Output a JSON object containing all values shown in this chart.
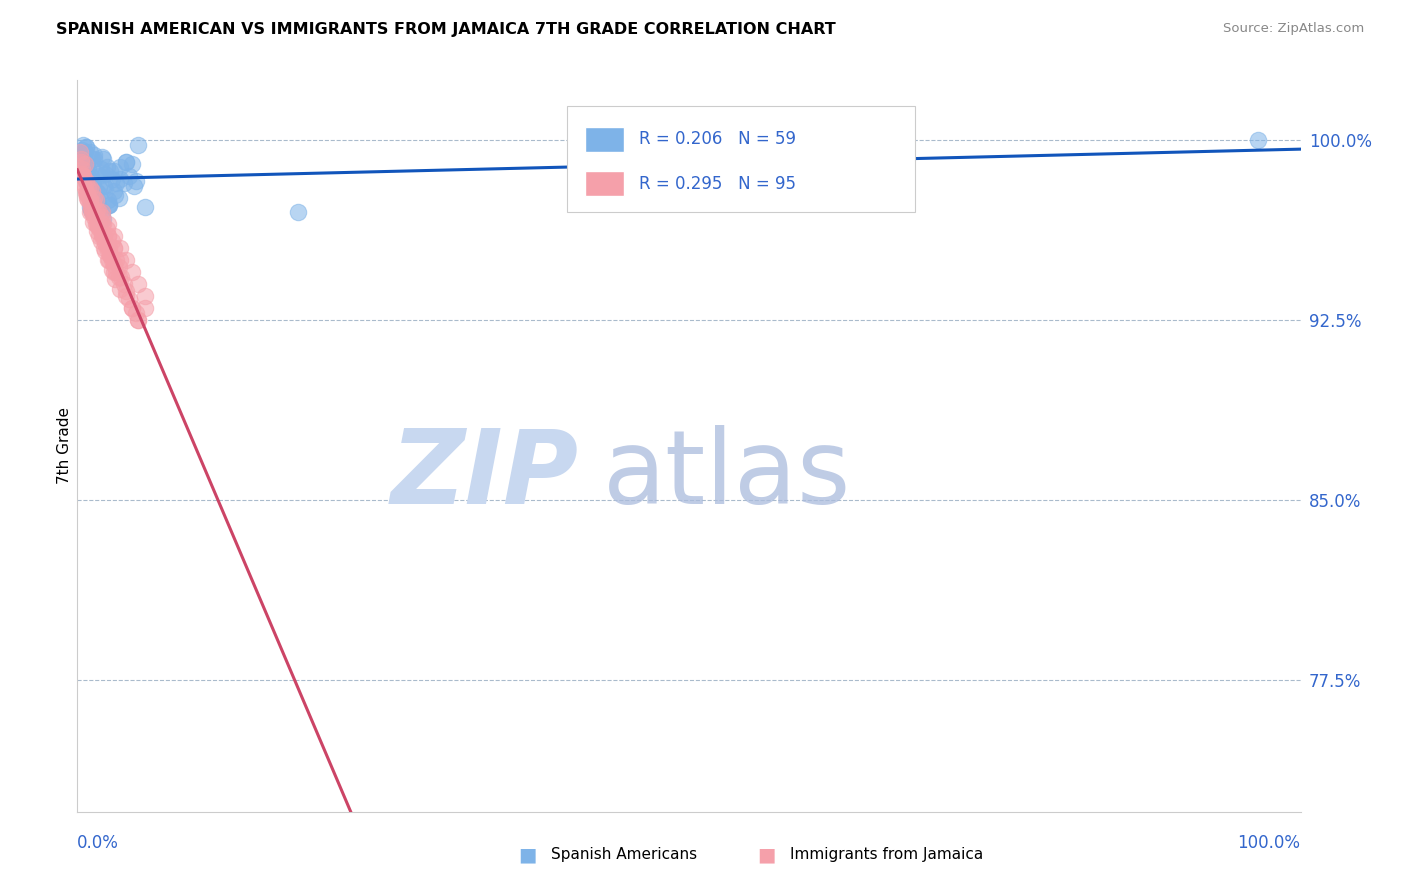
{
  "title": "SPANISH AMERICAN VS IMMIGRANTS FROM JAMAICA 7TH GRADE CORRELATION CHART",
  "source": "Source: ZipAtlas.com",
  "ylabel": "7th Grade",
  "y_ticks": [
    77.5,
    85.0,
    92.5,
    100.0
  ],
  "y_tick_labels": [
    "77.5%",
    "85.0%",
    "92.5%",
    "100.0%"
  ],
  "x_min": 0.0,
  "x_max": 100.0,
  "y_min": 72.0,
  "y_max": 102.5,
  "blue_R": 0.206,
  "blue_N": 59,
  "pink_R": 0.295,
  "pink_N": 95,
  "blue_color": "#7EB3E8",
  "pink_color": "#F5A0AA",
  "blue_line_color": "#1155BB",
  "pink_line_color": "#CC4466",
  "legend_text_color": "#3366CC",
  "watermark_zip_color": "#C8D8F0",
  "watermark_atlas_color": "#AABBDD",
  "background": "#FFFFFF",
  "blue_scatter_x": [
    0.3,
    0.4,
    0.5,
    0.6,
    0.7,
    0.8,
    0.9,
    1.0,
    1.1,
    1.2,
    1.3,
    1.4,
    1.5,
    1.6,
    1.7,
    1.8,
    1.9,
    2.0,
    2.1,
    2.2,
    2.3,
    2.4,
    2.5,
    2.6,
    2.7,
    2.8,
    3.0,
    3.1,
    3.2,
    3.4,
    3.5,
    3.8,
    4.0,
    4.2,
    4.5,
    4.6,
    4.8,
    5.0,
    5.5,
    0.5,
    0.7,
    1.0,
    1.2,
    1.5,
    1.8,
    2.0,
    2.3,
    2.6,
    3.0,
    3.5,
    4.0,
    0.8,
    1.1,
    1.4,
    1.7,
    2.1,
    2.5,
    18.0,
    96.5
  ],
  "blue_scatter_y": [
    99.3,
    99.6,
    99.8,
    99.5,
    99.7,
    99.0,
    98.8,
    99.5,
    98.5,
    99.2,
    98.3,
    99.4,
    97.5,
    98.6,
    97.8,
    98.0,
    98.8,
    97.0,
    99.2,
    98.1,
    98.6,
    98.9,
    97.5,
    97.3,
    98.7,
    98.4,
    97.9,
    97.7,
    98.2,
    97.6,
    98.4,
    98.2,
    99.1,
    98.5,
    99.0,
    98.1,
    98.3,
    99.8,
    97.2,
    99.4,
    99.7,
    97.2,
    97.6,
    97.9,
    98.5,
    99.3,
    98.0,
    97.3,
    98.7,
    98.9,
    99.1,
    98.2,
    97.1,
    99.2,
    97.4,
    96.7,
    97.3,
    97.0,
    100.0
  ],
  "pink_scatter_x": [
    0.2,
    0.3,
    0.4,
    0.5,
    0.6,
    0.7,
    0.8,
    0.9,
    1.0,
    1.1,
    1.2,
    1.3,
    1.4,
    1.5,
    1.6,
    1.7,
    1.8,
    1.9,
    2.0,
    2.1,
    2.2,
    2.3,
    2.4,
    2.5,
    2.6,
    2.7,
    2.8,
    3.0,
    3.2,
    3.4,
    3.6,
    3.8,
    4.0,
    4.2,
    4.5,
    4.8,
    5.0,
    5.5,
    0.5,
    0.8,
    1.0,
    1.3,
    1.6,
    1.9,
    2.2,
    2.5,
    2.8,
    3.1,
    3.5,
    0.4,
    0.7,
    1.1,
    1.4,
    1.7,
    2.1,
    2.4,
    2.7,
    3.0,
    3.4,
    0.6,
    0.9,
    1.2,
    1.5,
    1.8,
    2.3,
    2.6,
    3.0,
    0.3,
    0.8,
    1.2,
    1.6,
    2.0,
    2.4,
    2.8,
    3.2,
    4.0,
    4.5,
    5.0,
    1.0,
    1.5,
    2.0,
    2.5,
    3.0,
    3.5,
    0.5,
    1.0,
    1.5,
    2.0,
    2.5,
    3.0,
    3.5,
    4.0,
    4.5,
    5.0,
    5.5
  ],
  "pink_scatter_y": [
    99.5,
    99.2,
    98.8,
    98.5,
    99.0,
    98.3,
    97.8,
    98.0,
    97.5,
    97.2,
    97.9,
    97.4,
    97.6,
    96.8,
    97.1,
    96.5,
    97.0,
    96.2,
    96.8,
    96.5,
    96.0,
    95.7,
    96.3,
    96.0,
    95.5,
    95.2,
    95.8,
    95.5,
    95.0,
    94.7,
    94.3,
    94.0,
    93.7,
    93.4,
    93.0,
    92.8,
    92.5,
    93.0,
    98.2,
    97.6,
    97.0,
    96.6,
    96.2,
    95.8,
    95.5,
    95.0,
    94.6,
    94.2,
    93.8,
    98.6,
    97.8,
    97.2,
    96.8,
    96.4,
    96.0,
    95.6,
    95.2,
    94.8,
    94.3,
    98.0,
    97.5,
    97.0,
    96.5,
    96.0,
    95.4,
    95.0,
    94.5,
    99.1,
    97.7,
    97.0,
    96.5,
    96.0,
    95.5,
    95.0,
    94.5,
    93.5,
    93.0,
    92.5,
    97.5,
    97.0,
    96.5,
    96.0,
    95.5,
    95.0,
    98.5,
    98.0,
    97.5,
    97.0,
    96.5,
    96.0,
    95.5,
    95.0,
    94.5,
    94.0,
    93.5
  ]
}
